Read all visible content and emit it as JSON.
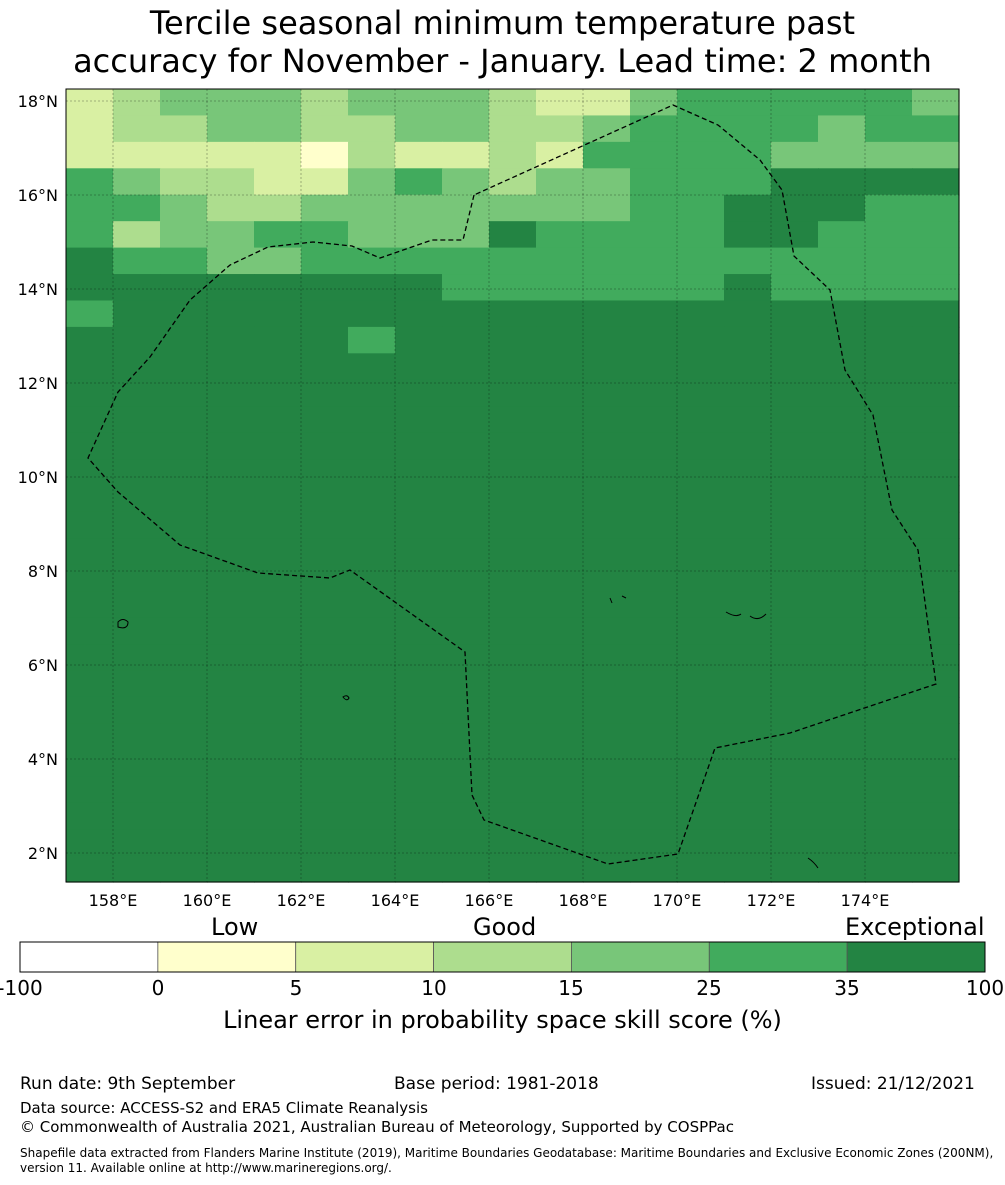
{
  "title": {
    "line1": "Tercile seasonal minimum temperature past",
    "line2": "accuracy for November - January. Lead time: 2 month"
  },
  "map": {
    "lon_ticks": [
      "158°E",
      "160°E",
      "162°E",
      "164°E",
      "166°E",
      "168°E",
      "170°E",
      "172°E",
      "174°E"
    ],
    "lat_ticks": [
      "18°N",
      "16°N",
      "14°N",
      "12°N",
      "10°N",
      "8°N",
      "6°N",
      "4°N",
      "2°N"
    ],
    "grid": [
      "2344434443224555554",
      "2334433443345555455",
      "2222213223255554444",
      "5433224543445556666",
      "5543344444445566655",
      "5344554446555566555",
      "6554455555555555555",
      "6666666655555565555",
      "5666666666666666666",
      "6666665666666666666",
      "6666666666666666666",
      "6666666666666666666",
      "6666666666666666666",
      "6666666666666666666",
      "6666666666666666666",
      "6666666666666666666",
      "6666666666666666666",
      "6666666666666666666",
      "6666666666666666666",
      "6666666666666666666",
      "6666666666666666666",
      "6666666666666666666",
      "6666666666666666666",
      "6666666666666666666",
      "6666666666666666666",
      "6666666666666666666",
      "6666666666666666666",
      "6666666666666666666",
      "6666666666666666666",
      "6666666666666666666"
    ]
  },
  "colorbar": {
    "labels": [
      "Low",
      "Good",
      "Exceptional"
    ],
    "ticks": [
      "-100",
      "0",
      "5",
      "10",
      "15",
      "25",
      "35",
      "100"
    ],
    "colors": [
      "#ffffff",
      "#ffffcc",
      "#d9f0a3",
      "#addd8e",
      "#78c679",
      "#41ab5d",
      "#238443"
    ],
    "title": "Linear error in probability space skill score (%)"
  },
  "footer": {
    "run_date": "Run date: 9th September",
    "base_period": "Base period: 1981-2018",
    "issued": "Issued: 21/12/2021",
    "data_source": "Data source: ACCESS-S2 and ERA5 Climate Reanalysis",
    "copyright": "© Commonwealth of Australia 2021, Australian Bureau of Meteorology, Supported by COSPPac",
    "shapefile_line1": "Shapefile data extracted from Flanders Marine Institute (2019), Maritime Boundaries Geodatabase: Maritime Boundaries and Exclusive Economic Zones (200NM),",
    "shapefile_line2": "version 11. Available online at http://www.marineregions.org/."
  }
}
